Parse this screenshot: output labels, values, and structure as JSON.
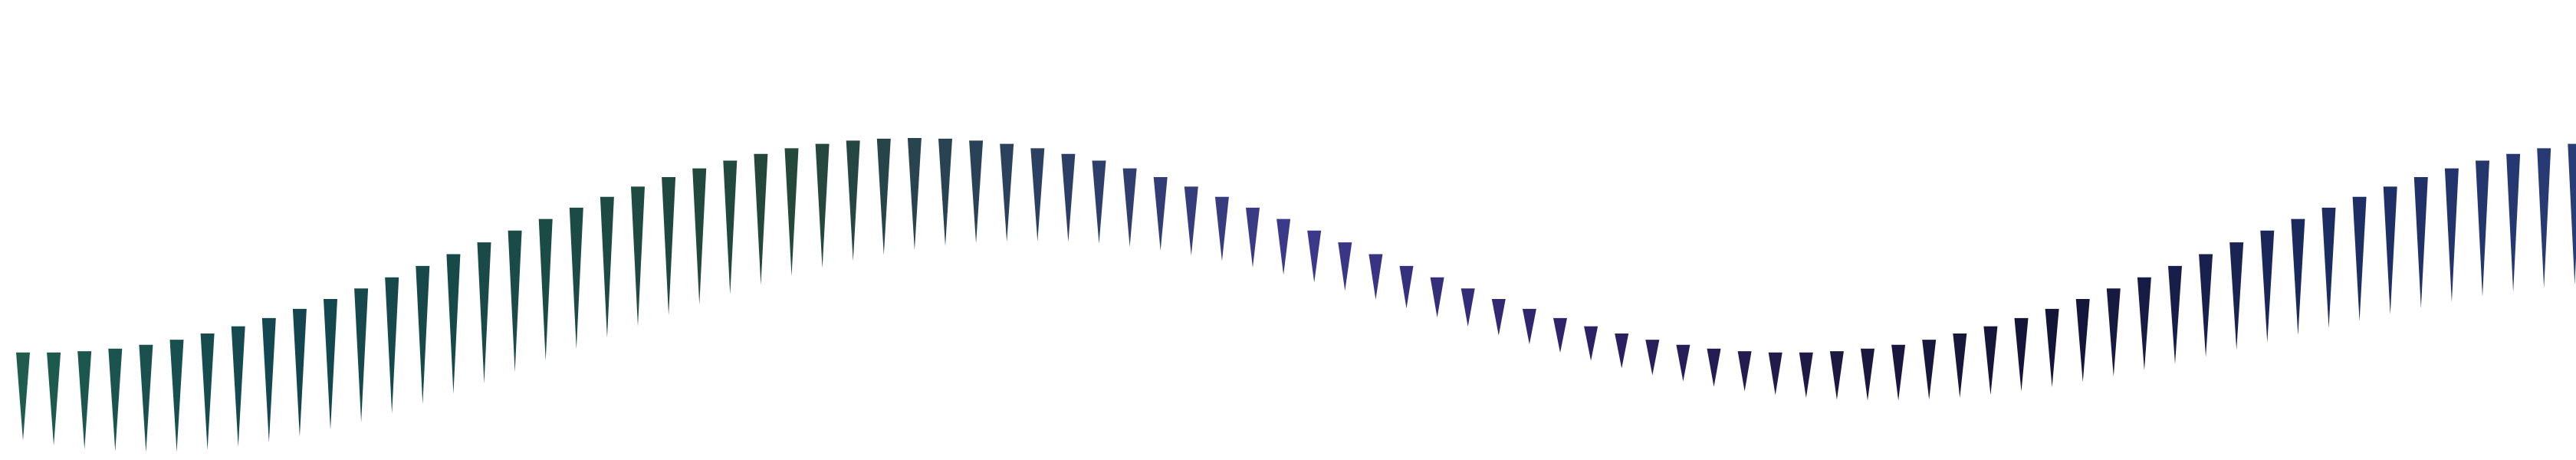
{
  "background_color": "#ffffff",
  "spike_colors": [
    "#1f5a4e",
    "#153f55",
    "#244a3b",
    "#2b3f63",
    "#3a3c8e",
    "#2a1f5e",
    "#1a1a3e",
    "#16163a",
    "#1f2d62",
    "#2a3d78"
  ],
  "spike_count": 84,
  "description_pattern": "wave"
}
